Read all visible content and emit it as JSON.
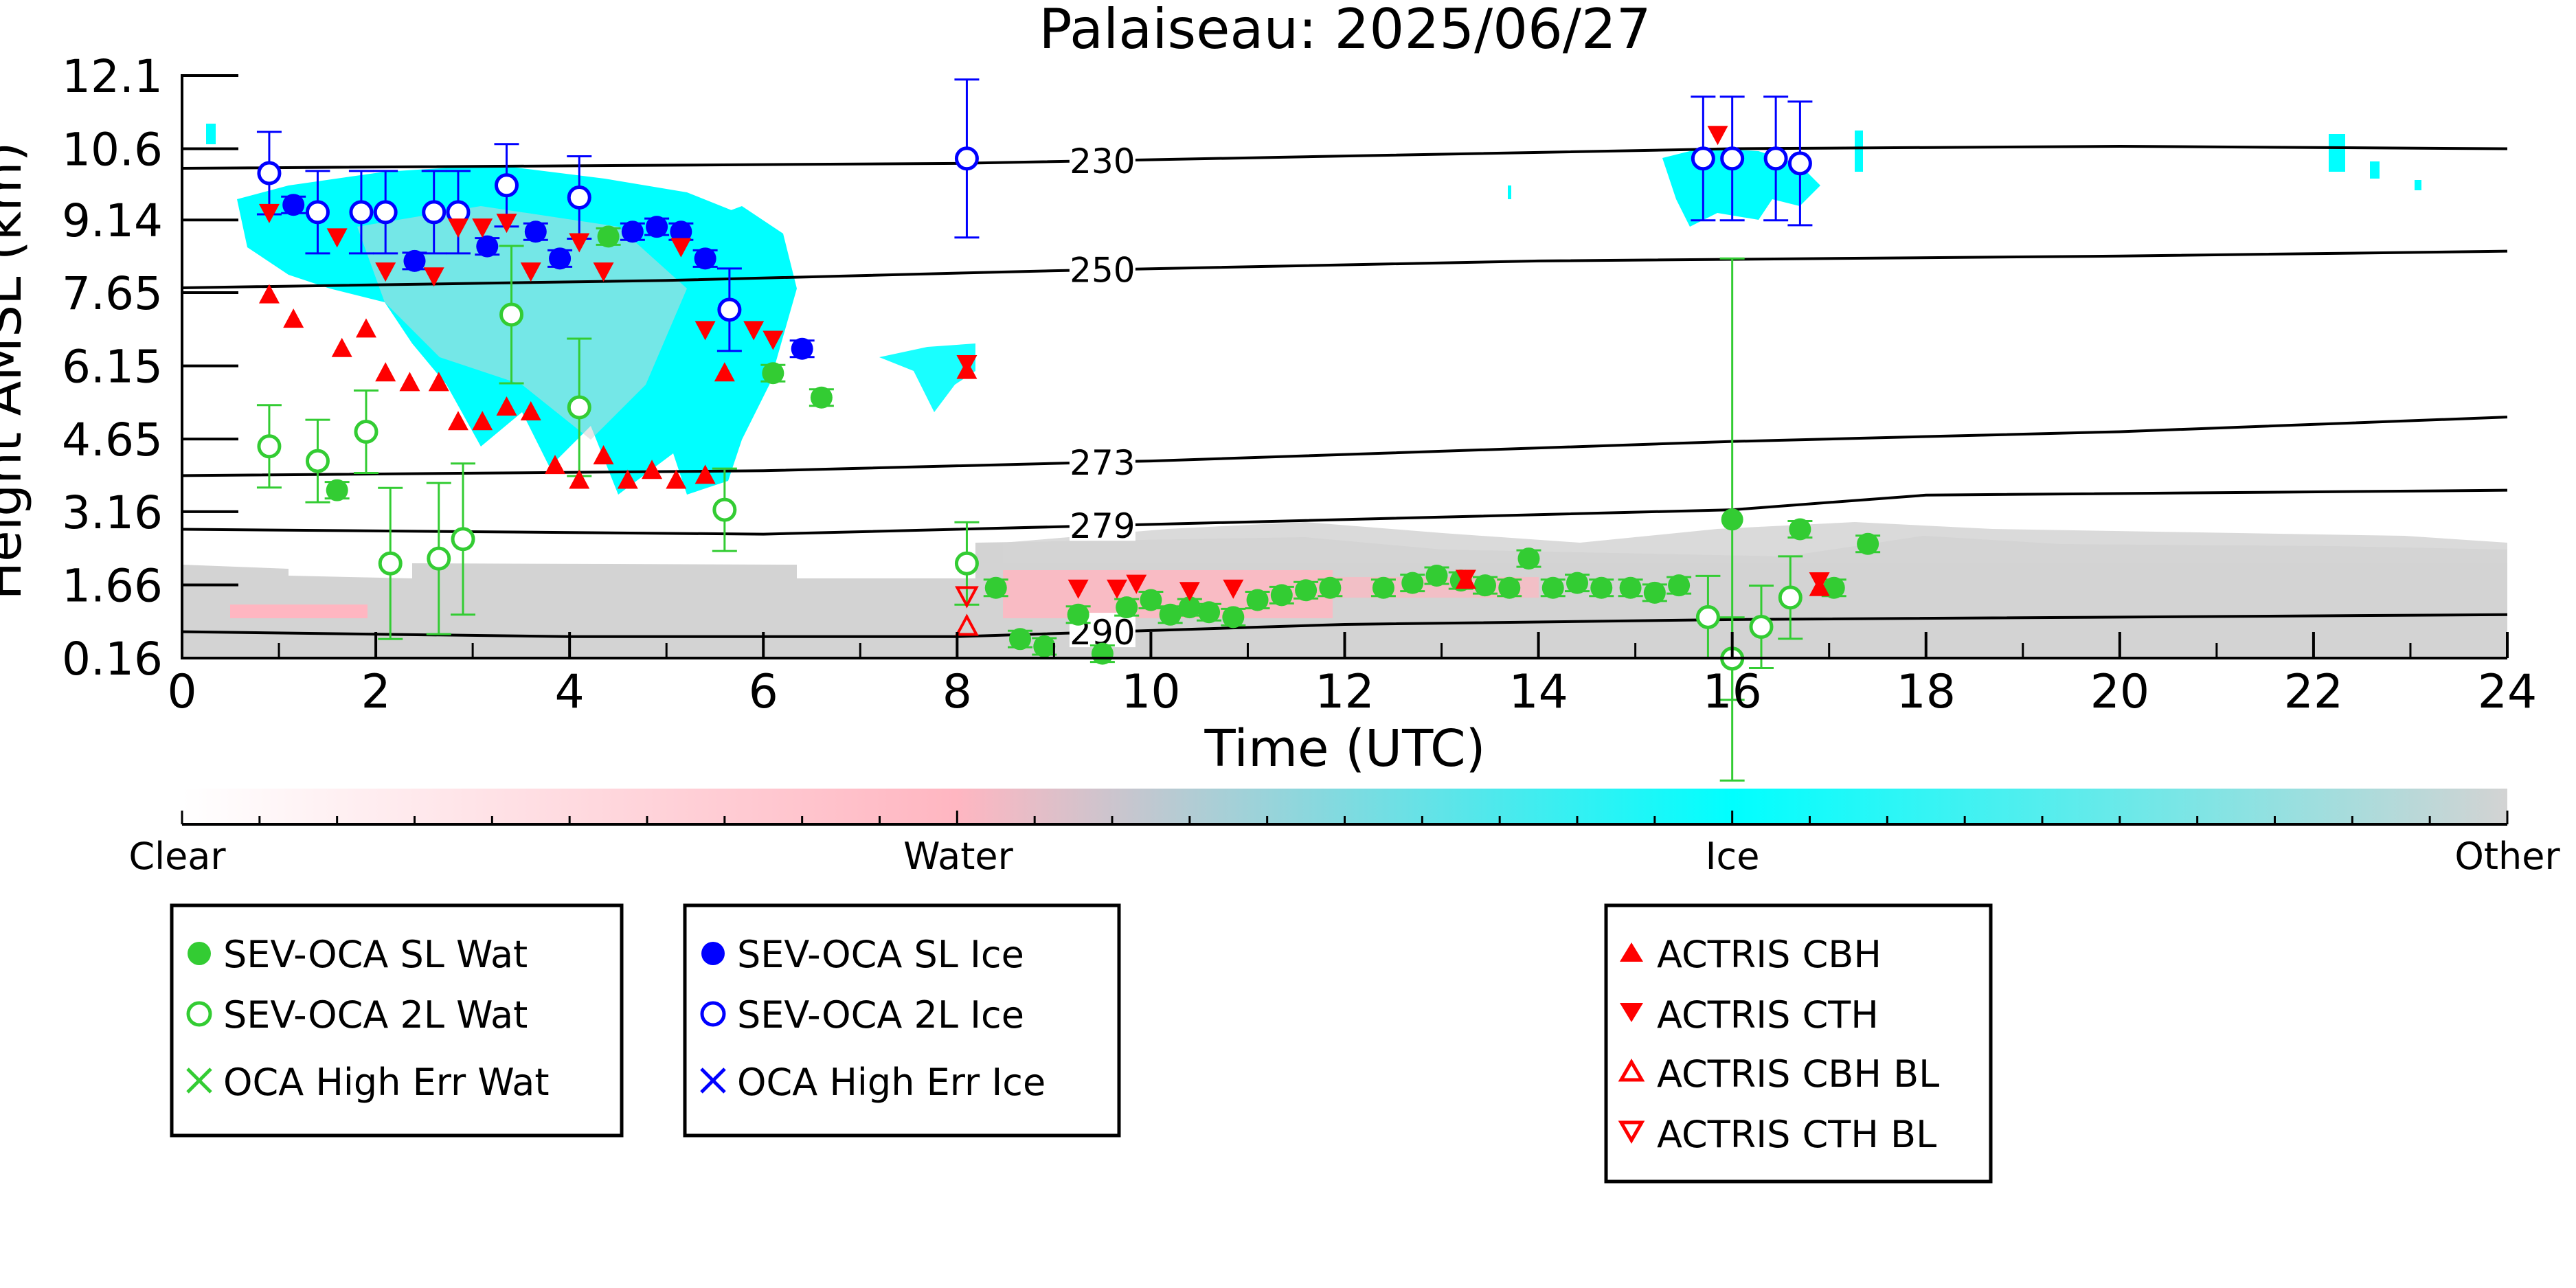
{
  "chart_data": {
    "type": "scatter",
    "title": "Palaiseau: 2025/06/27",
    "xlabel": "Time (UTC)",
    "ylabel": "Height AMSL (km)",
    "xlim": [
      0,
      24
    ],
    "ylim": [
      0.16,
      12.1
    ],
    "x_ticks": [
      0,
      2,
      4,
      6,
      8,
      10,
      12,
      14,
      16,
      18,
      20,
      22,
      24
    ],
    "x_tick_labels": [
      "0",
      "2",
      "4",
      "6",
      "8",
      "10",
      "12",
      "14",
      "16",
      "18",
      "20",
      "22",
      "24"
    ],
    "y_ticks": [
      0.16,
      1.66,
      3.16,
      4.65,
      6.15,
      7.65,
      9.14,
      10.6,
      12.1
    ],
    "y_tick_labels": [
      "0.16",
      "1.66",
      "3.16",
      "4.65",
      "6.15",
      "7.65",
      "9.14",
      "10.6",
      "12.1"
    ],
    "colors": {
      "water_green": "#33cc33",
      "ice_blue": "#0000ff",
      "actris_red": "#ff0000",
      "ice_cyan": "#00ffff",
      "water_pink": "#ffb6c1",
      "other_gray": "#d3d3d3"
    },
    "colorbar": {
      "labels": [
        "Clear",
        "Water",
        "Ice",
        "Other"
      ],
      "colors": [
        "#ffffff",
        "#ffb6c1",
        "#00ffff",
        "#d3d3d3"
      ]
    },
    "isotherms": [
      {
        "label": "230",
        "label_x": 9.5,
        "points": [
          [
            0,
            10.2
          ],
          [
            8,
            10.3
          ],
          [
            12,
            10.45
          ],
          [
            16,
            10.6
          ],
          [
            20,
            10.65
          ],
          [
            24,
            10.6
          ]
        ]
      },
      {
        "label": "250",
        "label_x": 9.5,
        "points": [
          [
            0,
            7.75
          ],
          [
            5,
            7.9
          ],
          [
            9,
            8.1
          ],
          [
            14,
            8.3
          ],
          [
            20,
            8.4
          ],
          [
            24,
            8.5
          ]
        ]
      },
      {
        "label": "273",
        "label_x": 9.5,
        "points": [
          [
            0,
            3.9
          ],
          [
            6,
            4.0
          ],
          [
            10,
            4.2
          ],
          [
            16,
            4.6
          ],
          [
            20,
            4.8
          ],
          [
            24,
            5.1
          ]
        ]
      },
      {
        "label": "279",
        "label_x": 9.5,
        "points": [
          [
            0,
            2.8
          ],
          [
            6,
            2.7
          ],
          [
            10,
            2.9
          ],
          [
            16,
            3.2
          ],
          [
            18,
            3.5
          ],
          [
            24,
            3.6
          ]
        ]
      },
      {
        "label": "290",
        "label_x": 9.5,
        "points": [
          [
            0,
            0.7
          ],
          [
            4,
            0.6
          ],
          [
            8,
            0.6
          ],
          [
            12,
            0.85
          ],
          [
            16,
            0.95
          ],
          [
            24,
            1.05
          ]
        ]
      }
    ],
    "series": [
      {
        "name": "SEV-OCA SL Wat",
        "marker": "circle-filled",
        "color": "#33cc33",
        "points": [
          [
            1.6,
            3.6
          ],
          [
            4.4,
            8.8
          ],
          [
            6.1,
            6.0
          ],
          [
            6.6,
            5.5
          ],
          [
            8.4,
            1.6
          ],
          [
            8.65,
            0.55
          ],
          [
            8.9,
            0.4
          ],
          [
            9.25,
            1.05
          ],
          [
            9.5,
            0.25
          ],
          [
            9.75,
            1.2
          ],
          [
            10.0,
            1.35
          ],
          [
            10.2,
            1.05
          ],
          [
            10.4,
            1.2
          ],
          [
            10.6,
            1.1
          ],
          [
            10.85,
            1.0
          ],
          [
            11.1,
            1.35
          ],
          [
            11.35,
            1.45
          ],
          [
            11.6,
            1.55
          ],
          [
            11.85,
            1.6
          ],
          [
            12.4,
            1.6
          ],
          [
            12.7,
            1.7
          ],
          [
            12.95,
            1.85
          ],
          [
            13.2,
            1.75
          ],
          [
            13.45,
            1.65
          ],
          [
            13.7,
            1.6
          ],
          [
            13.9,
            2.2
          ],
          [
            14.15,
            1.6
          ],
          [
            14.4,
            1.7
          ],
          [
            14.65,
            1.6
          ],
          [
            14.95,
            1.6
          ],
          [
            15.2,
            1.5
          ],
          [
            15.45,
            1.65
          ],
          [
            16.0,
            3.0
          ],
          [
            16.7,
            2.8
          ],
          [
            17.05,
            1.6
          ],
          [
            17.4,
            2.5
          ]
        ]
      },
      {
        "name": "SEV-OCA 2L Wat",
        "marker": "circle-open",
        "color": "#33cc33",
        "points": [
          [
            0.9,
            4.5
          ],
          [
            1.4,
            4.2
          ],
          [
            1.9,
            4.8
          ],
          [
            2.15,
            2.1
          ],
          [
            2.65,
            2.2
          ],
          [
            2.9,
            2.6
          ],
          [
            3.4,
            7.2
          ],
          [
            4.1,
            5.3
          ],
          [
            5.6,
            3.2
          ],
          [
            8.1,
            2.1
          ],
          [
            15.75,
            1.0
          ],
          [
            16.0,
            0.15
          ],
          [
            16.3,
            0.8
          ],
          [
            16.6,
            1.4
          ]
        ]
      },
      {
        "name": "OCA High Err Wat",
        "marker": "x",
        "color": "#33cc33",
        "points": []
      },
      {
        "name": "SEV-OCA SL Ice",
        "marker": "circle-filled",
        "color": "#0000ff",
        "points": [
          [
            1.15,
            9.45
          ],
          [
            2.4,
            8.3
          ],
          [
            3.15,
            8.6
          ],
          [
            3.65,
            8.9
          ],
          [
            3.9,
            8.35
          ],
          [
            4.65,
            8.9
          ],
          [
            4.9,
            9.0
          ],
          [
            5.15,
            8.9
          ],
          [
            5.4,
            8.35
          ],
          [
            6.4,
            6.5
          ]
        ]
      },
      {
        "name": "SEV-OCA 2L Ice",
        "marker": "circle-open",
        "color": "#0000ff",
        "points": [
          [
            0.9,
            10.1
          ],
          [
            1.4,
            9.3
          ],
          [
            1.85,
            9.3
          ],
          [
            2.1,
            9.3
          ],
          [
            2.6,
            9.3
          ],
          [
            2.85,
            9.3
          ],
          [
            3.35,
            9.85
          ],
          [
            4.1,
            9.6
          ],
          [
            5.65,
            7.3
          ],
          [
            8.1,
            10.4
          ],
          [
            15.7,
            10.4
          ],
          [
            16.0,
            10.4
          ],
          [
            16.45,
            10.4
          ],
          [
            16.7,
            10.3
          ]
        ]
      },
      {
        "name": "OCA High Err Ice",
        "marker": "x",
        "color": "#0000ff",
        "points": []
      },
      {
        "name": "ACTRIS CBH",
        "marker": "triangle-up-filled",
        "color": "#ff0000",
        "points": [
          [
            0.9,
            7.6
          ],
          [
            1.15,
            7.1
          ],
          [
            1.65,
            6.5
          ],
          [
            1.9,
            6.9
          ],
          [
            2.1,
            6.0
          ],
          [
            2.35,
            5.8
          ],
          [
            2.65,
            5.8
          ],
          [
            2.85,
            5.0
          ],
          [
            3.1,
            5.0
          ],
          [
            3.35,
            5.3
          ],
          [
            3.6,
            5.2
          ],
          [
            3.85,
            4.1
          ],
          [
            4.1,
            3.8
          ],
          [
            4.35,
            4.3
          ],
          [
            4.6,
            3.8
          ],
          [
            4.85,
            4.0
          ],
          [
            5.1,
            3.8
          ],
          [
            5.4,
            3.9
          ],
          [
            5.6,
            6.0
          ],
          [
            8.1,
            6.05
          ],
          [
            13.25,
            1.75
          ],
          [
            16.9,
            1.6
          ]
        ]
      },
      {
        "name": "ACTRIS CTH",
        "marker": "triangle-down-filled",
        "color": "#ff0000",
        "points": [
          [
            0.9,
            9.3
          ],
          [
            1.6,
            8.8
          ],
          [
            2.1,
            8.1
          ],
          [
            2.6,
            8.0
          ],
          [
            2.85,
            9.0
          ],
          [
            3.1,
            9.0
          ],
          [
            3.35,
            9.1
          ],
          [
            3.6,
            8.1
          ],
          [
            4.1,
            8.7
          ],
          [
            4.35,
            8.1
          ],
          [
            5.15,
            8.6
          ],
          [
            5.4,
            6.9
          ],
          [
            5.9,
            6.9
          ],
          [
            6.1,
            6.7
          ],
          [
            8.1,
            6.2
          ],
          [
            9.25,
            1.6
          ],
          [
            9.65,
            1.6
          ],
          [
            9.85,
            1.7
          ],
          [
            10.4,
            1.55
          ],
          [
            10.85,
            1.6
          ],
          [
            13.25,
            1.8
          ],
          [
            15.85,
            10.9
          ],
          [
            16.9,
            1.75
          ]
        ]
      },
      {
        "name": "ACTRIS CBH BL",
        "marker": "triangle-up-open",
        "color": "#ff0000",
        "points": [
          [
            8.1,
            0.8
          ]
        ]
      },
      {
        "name": "ACTRIS CTH BL",
        "marker": "triangle-down-open",
        "color": "#ff0000",
        "points": [
          [
            8.1,
            1.45
          ]
        ]
      }
    ]
  }
}
